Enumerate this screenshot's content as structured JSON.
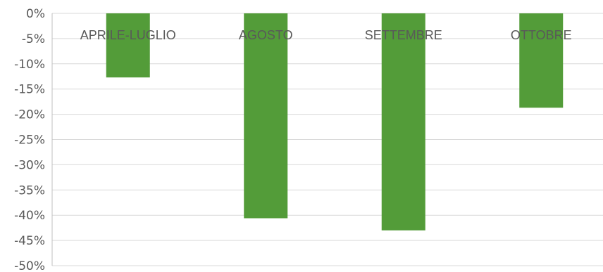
{
  "chart_data": {
    "type": "bar",
    "categories": [
      "APRILE-LUGLIO",
      "AGOSTO",
      "SETTEMBRE",
      "OTTOBRE"
    ],
    "values": [
      -12.7,
      -40.6,
      -43.0,
      -18.7
    ],
    "unit": "%",
    "ylim": [
      -50,
      0
    ],
    "yticks": [
      "0%",
      "-5%",
      "-10%",
      "-15%",
      "-20%",
      "-25%",
      "-30%",
      "-35%",
      "-40%",
      "-45%",
      "-50%"
    ],
    "grid": true,
    "category_labels_position": "top",
    "bar_color": "#539c39",
    "title": "",
    "xlabel": "",
    "ylabel": ""
  }
}
